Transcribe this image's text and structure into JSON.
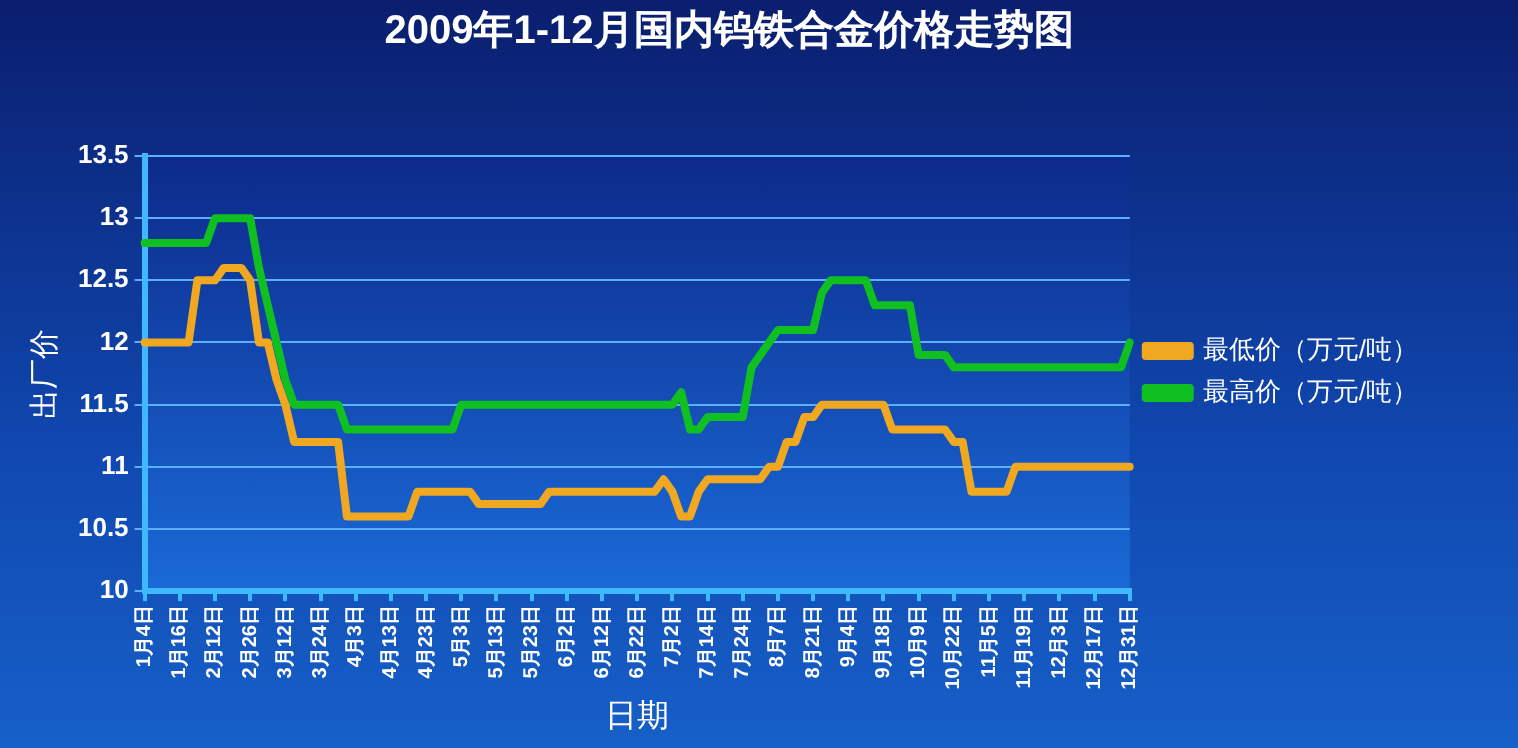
{
  "chart_data": {
    "type": "line",
    "title": "2009年1-12月国内钨铁合金价格走势图",
    "xlabel": "日期",
    "ylabel": "出厂价",
    "categories": [
      "1月4日",
      null,
      null,
      null,
      "1月16日",
      null,
      null,
      null,
      "2月12日",
      null,
      null,
      null,
      "2月26日",
      null,
      null,
      null,
      "3月12日",
      null,
      null,
      null,
      "3月24日",
      null,
      null,
      null,
      "4月3日",
      null,
      null,
      null,
      "4月13日",
      null,
      null,
      null,
      "4月23日",
      null,
      null,
      null,
      "5月3日",
      null,
      null,
      null,
      "5月13日",
      null,
      null,
      null,
      "5月23日",
      null,
      null,
      null,
      "6月2日",
      null,
      null,
      null,
      "6月12日",
      null,
      null,
      null,
      "6月22日",
      null,
      null,
      null,
      "7月2日",
      null,
      null,
      null,
      "7月14日",
      null,
      null,
      null,
      "7月24日",
      null,
      null,
      null,
      "8月7日",
      null,
      null,
      null,
      "8月21日",
      null,
      null,
      null,
      "9月4日",
      null,
      null,
      null,
      "9月18日",
      null,
      null,
      null,
      "10月9日",
      null,
      null,
      null,
      "10月22日",
      null,
      null,
      null,
      "11月5日",
      null,
      null,
      null,
      "11月19日",
      null,
      null,
      null,
      "12月3日",
      null,
      null,
      null,
      "12月17日",
      null,
      null,
      null,
      "12月31日"
    ],
    "series": [
      {
        "name": "最低价（万元/吨）",
        "color": "#f0a820",
        "values": [
          12.0,
          12.0,
          12.0,
          12.0,
          12.0,
          12.0,
          12.5,
          12.5,
          12.5,
          12.6,
          12.6,
          12.6,
          12.5,
          12.0,
          12.0,
          11.7,
          11.5,
          11.2,
          11.2,
          11.2,
          11.2,
          11.2,
          11.2,
          10.6,
          10.6,
          10.6,
          10.6,
          10.6,
          10.6,
          10.6,
          10.6,
          10.8,
          10.8,
          10.8,
          10.8,
          10.8,
          10.8,
          10.8,
          10.7,
          10.7,
          10.7,
          10.7,
          10.7,
          10.7,
          10.7,
          10.7,
          10.8,
          10.8,
          10.8,
          10.8,
          10.8,
          10.8,
          10.8,
          10.8,
          10.8,
          10.8,
          10.8,
          10.8,
          10.8,
          10.9,
          10.8,
          10.6,
          10.6,
          10.8,
          10.9,
          10.9,
          10.9,
          10.9,
          10.9,
          10.9,
          10.9,
          11.0,
          11.0,
          11.2,
          11.2,
          11.4,
          11.4,
          11.5,
          11.5,
          11.5,
          11.5,
          11.5,
          11.5,
          11.5,
          11.5,
          11.3,
          11.3,
          11.3,
          11.3,
          11.3,
          11.3,
          11.3,
          11.2,
          11.2,
          10.8,
          10.8,
          10.8,
          10.8,
          10.8,
          11.0,
          11.0,
          11.0,
          11.0,
          11.0,
          11.0,
          11.0,
          11.0,
          11.0,
          11.0,
          11.0,
          11.0,
          11.0,
          11.0
        ]
      },
      {
        "name": "最高价（万元/吨）",
        "color": "#10c020",
        "values": [
          12.8,
          12.8,
          12.8,
          12.8,
          12.8,
          12.8,
          12.8,
          12.8,
          13.0,
          13.0,
          13.0,
          13.0,
          13.0,
          12.6,
          12.3,
          12.0,
          11.7,
          11.5,
          11.5,
          11.5,
          11.5,
          11.5,
          11.5,
          11.3,
          11.3,
          11.3,
          11.3,
          11.3,
          11.3,
          11.3,
          11.3,
          11.3,
          11.3,
          11.3,
          11.3,
          11.3,
          11.5,
          11.5,
          11.5,
          11.5,
          11.5,
          11.5,
          11.5,
          11.5,
          11.5,
          11.5,
          11.5,
          11.5,
          11.5,
          11.5,
          11.5,
          11.5,
          11.5,
          11.5,
          11.5,
          11.5,
          11.5,
          11.5,
          11.5,
          11.5,
          11.5,
          11.6,
          11.3,
          11.3,
          11.4,
          11.4,
          11.4,
          11.4,
          11.4,
          11.8,
          11.9,
          12.0,
          12.1,
          12.1,
          12.1,
          12.1,
          12.1,
          12.4,
          12.5,
          12.5,
          12.5,
          12.5,
          12.5,
          12.3,
          12.3,
          12.3,
          12.3,
          12.3,
          11.9,
          11.9,
          11.9,
          11.9,
          11.8,
          11.8,
          11.8,
          11.8,
          11.8,
          11.8,
          11.8,
          11.8,
          11.8,
          11.8,
          11.8,
          11.8,
          11.8,
          11.8,
          11.8,
          11.8,
          11.8,
          11.8,
          11.8,
          11.8,
          12.0
        ]
      }
    ],
    "ylim": [
      10,
      13.5
    ],
    "yticks": [
      10,
      10.5,
      11,
      11.5,
      12,
      12.5,
      13,
      13.5
    ],
    "grid": "y",
    "legend": "right",
    "marker": "none",
    "line_style": "solid"
  }
}
